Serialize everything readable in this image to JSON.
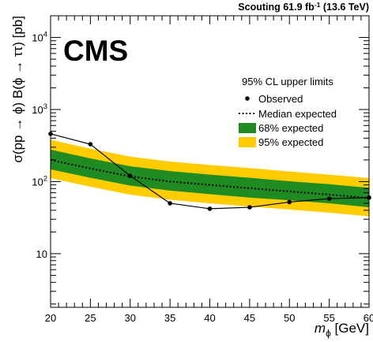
{
  "header": {
    "lumi_label": "Scouting 61.9 fb",
    "lumi_sup": "-1",
    "lumi_energy": " (13.6 TeV)"
  },
  "experiment": "CMS",
  "chart_data": {
    "type": "line",
    "xlabel_symbol": "m",
    "xlabel_sub": "ϕ",
    "xlabel_unit": " [GeV]",
    "ylabel": "σ(pp → ϕ) B(ϕ → ττ) [pb]",
    "xlim": [
      20,
      60
    ],
    "ylim": [
      1.8,
      20000
    ],
    "y_scale": "log",
    "x_ticks": [
      20,
      25,
      30,
      35,
      40,
      45,
      50,
      55,
      60
    ],
    "y_ticks": [
      {
        "value": 10,
        "base": "10",
        "exp": ""
      },
      {
        "value": 100,
        "base": "10",
        "exp": "2"
      },
      {
        "value": 1000,
        "base": "10",
        "exp": "3"
      },
      {
        "value": 10000,
        "base": "10",
        "exp": "4"
      }
    ],
    "legend": {
      "title": "95% CL upper limits",
      "entries": [
        "Observed",
        "Median expected",
        "68% expected",
        "95% expected"
      ],
      "placement": "top-right"
    },
    "colors": {
      "band68": "#1f8b23",
      "band95": "#ffcc00",
      "observed": "#000000",
      "expected": "#000000"
    },
    "series": [
      {
        "name": "Observed",
        "x": [
          20,
          25,
          30,
          35,
          40,
          45,
          50,
          55,
          60
        ],
        "y": [
          460,
          330,
          120,
          50,
          42,
          44,
          52,
          58,
          60
        ]
      },
      {
        "name": "Median expected",
        "x": [
          20,
          25,
          30,
          35,
          40,
          45,
          50,
          55,
          60
        ],
        "y": [
          200,
          152,
          118,
          100,
          90,
          81,
          73,
          66,
          59
        ]
      },
      {
        "name": "68% expected",
        "x": [
          20,
          25,
          30,
          35,
          40,
          45,
          50,
          55,
          60
        ],
        "low": [
          148,
          113,
          88,
          75,
          67,
          60,
          55,
          50,
          44
        ],
        "high": [
          278,
          210,
          163,
          140,
          125,
          113,
          101,
          92,
          82
        ]
      },
      {
        "name": "95% expected",
        "x": [
          20,
          25,
          30,
          35,
          40,
          45,
          50,
          55,
          60
        ],
        "low": [
          112,
          85,
          66,
          56,
          50,
          45,
          41,
          37,
          33
        ],
        "high": [
          380,
          286,
          222,
          190,
          170,
          154,
          138,
          125,
          112
        ]
      }
    ]
  }
}
